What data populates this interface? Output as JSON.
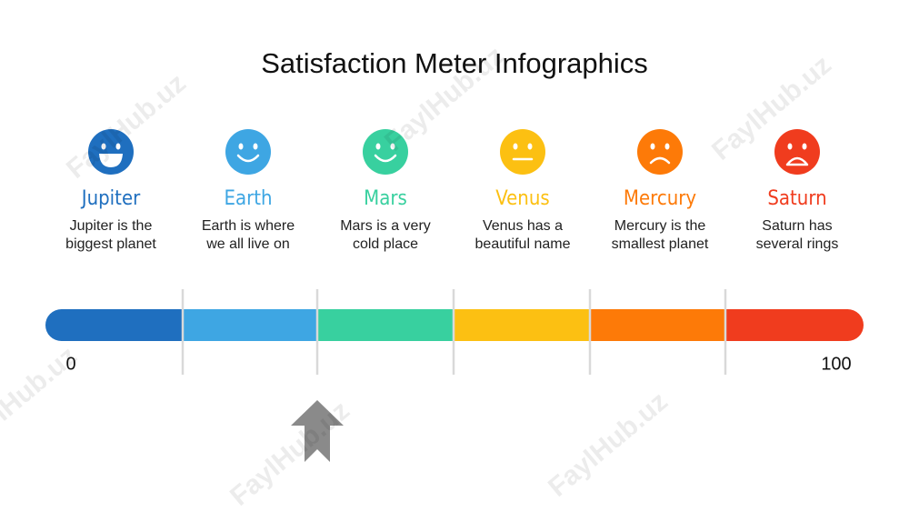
{
  "title": "Satisfaction Meter Infographics",
  "watermark": "FaylHub.uz",
  "items": [
    {
      "name": "Jupiter",
      "description": [
        "Jupiter is the",
        "biggest planet"
      ],
      "color": "#1f6fbf"
    },
    {
      "name": "Earth",
      "description": [
        "Earth is where",
        "we all live on"
      ],
      "color": "#3ea6e3"
    },
    {
      "name": "Mars",
      "description": [
        "Mars is a very",
        "cold place"
      ],
      "color": "#38d09f"
    },
    {
      "name": "Venus",
      "description": [
        "Venus has a",
        "beautiful name"
      ],
      "color": "#fcc012"
    },
    {
      "name": "Mercury",
      "description": [
        "Mercury is the",
        "smallest planet"
      ],
      "color": "#fd7a08"
    },
    {
      "name": "Saturn",
      "description": [
        "Saturn has",
        "several rings"
      ],
      "color": "#f03c1e"
    }
  ],
  "scale": {
    "min_label": "0",
    "max_label": "100"
  }
}
